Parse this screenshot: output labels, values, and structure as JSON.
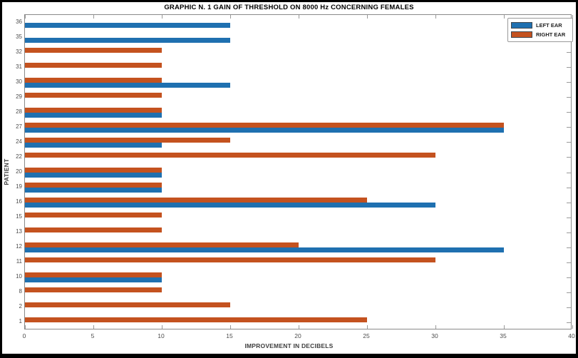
{
  "figure": {
    "background": "#ffffff",
    "border_color": "#000000"
  },
  "chart_data": {
    "type": "bar",
    "orientation": "horizontal",
    "title": "GRAPHIC N. 1 GAIN OF THRESHOLD ON 8000 Hz CONCERNING FEMALES",
    "xlabel": "IMPROVEMENT IN DECIBELS",
    "ylabel": "PATIENT",
    "xlim": [
      0,
      40
    ],
    "xticks": [
      0,
      5,
      10,
      15,
      20,
      25,
      30,
      35,
      40
    ],
    "grid": false,
    "legend_position": "top-right",
    "categories": [
      "36",
      "35",
      "32",
      "31",
      "30",
      "29",
      "28",
      "27",
      "24",
      "22",
      "20",
      "19",
      "16",
      "15",
      "13",
      "12",
      "11",
      "10",
      "8",
      "2",
      "1"
    ],
    "series": [
      {
        "name": "LEFT EAR",
        "color": "#1f70b0",
        "values": [
          15,
          15,
          0,
          0,
          15,
          0,
          10,
          35,
          10,
          0,
          10,
          10,
          30,
          0,
          0,
          35,
          0,
          10,
          0,
          0,
          0
        ]
      },
      {
        "name": "RIGHT EAR",
        "color": "#c4521f",
        "values": [
          0,
          0,
          10,
          10,
          10,
          10,
          10,
          35,
          15,
          30,
          10,
          10,
          25,
          10,
          10,
          20,
          30,
          10,
          10,
          15,
          25
        ]
      }
    ]
  },
  "colors": {
    "left_ear": "#1f70b0",
    "right_ear": "#c4521f",
    "axis": "#8a8a8a",
    "tick_label": "#4d4d4d"
  }
}
